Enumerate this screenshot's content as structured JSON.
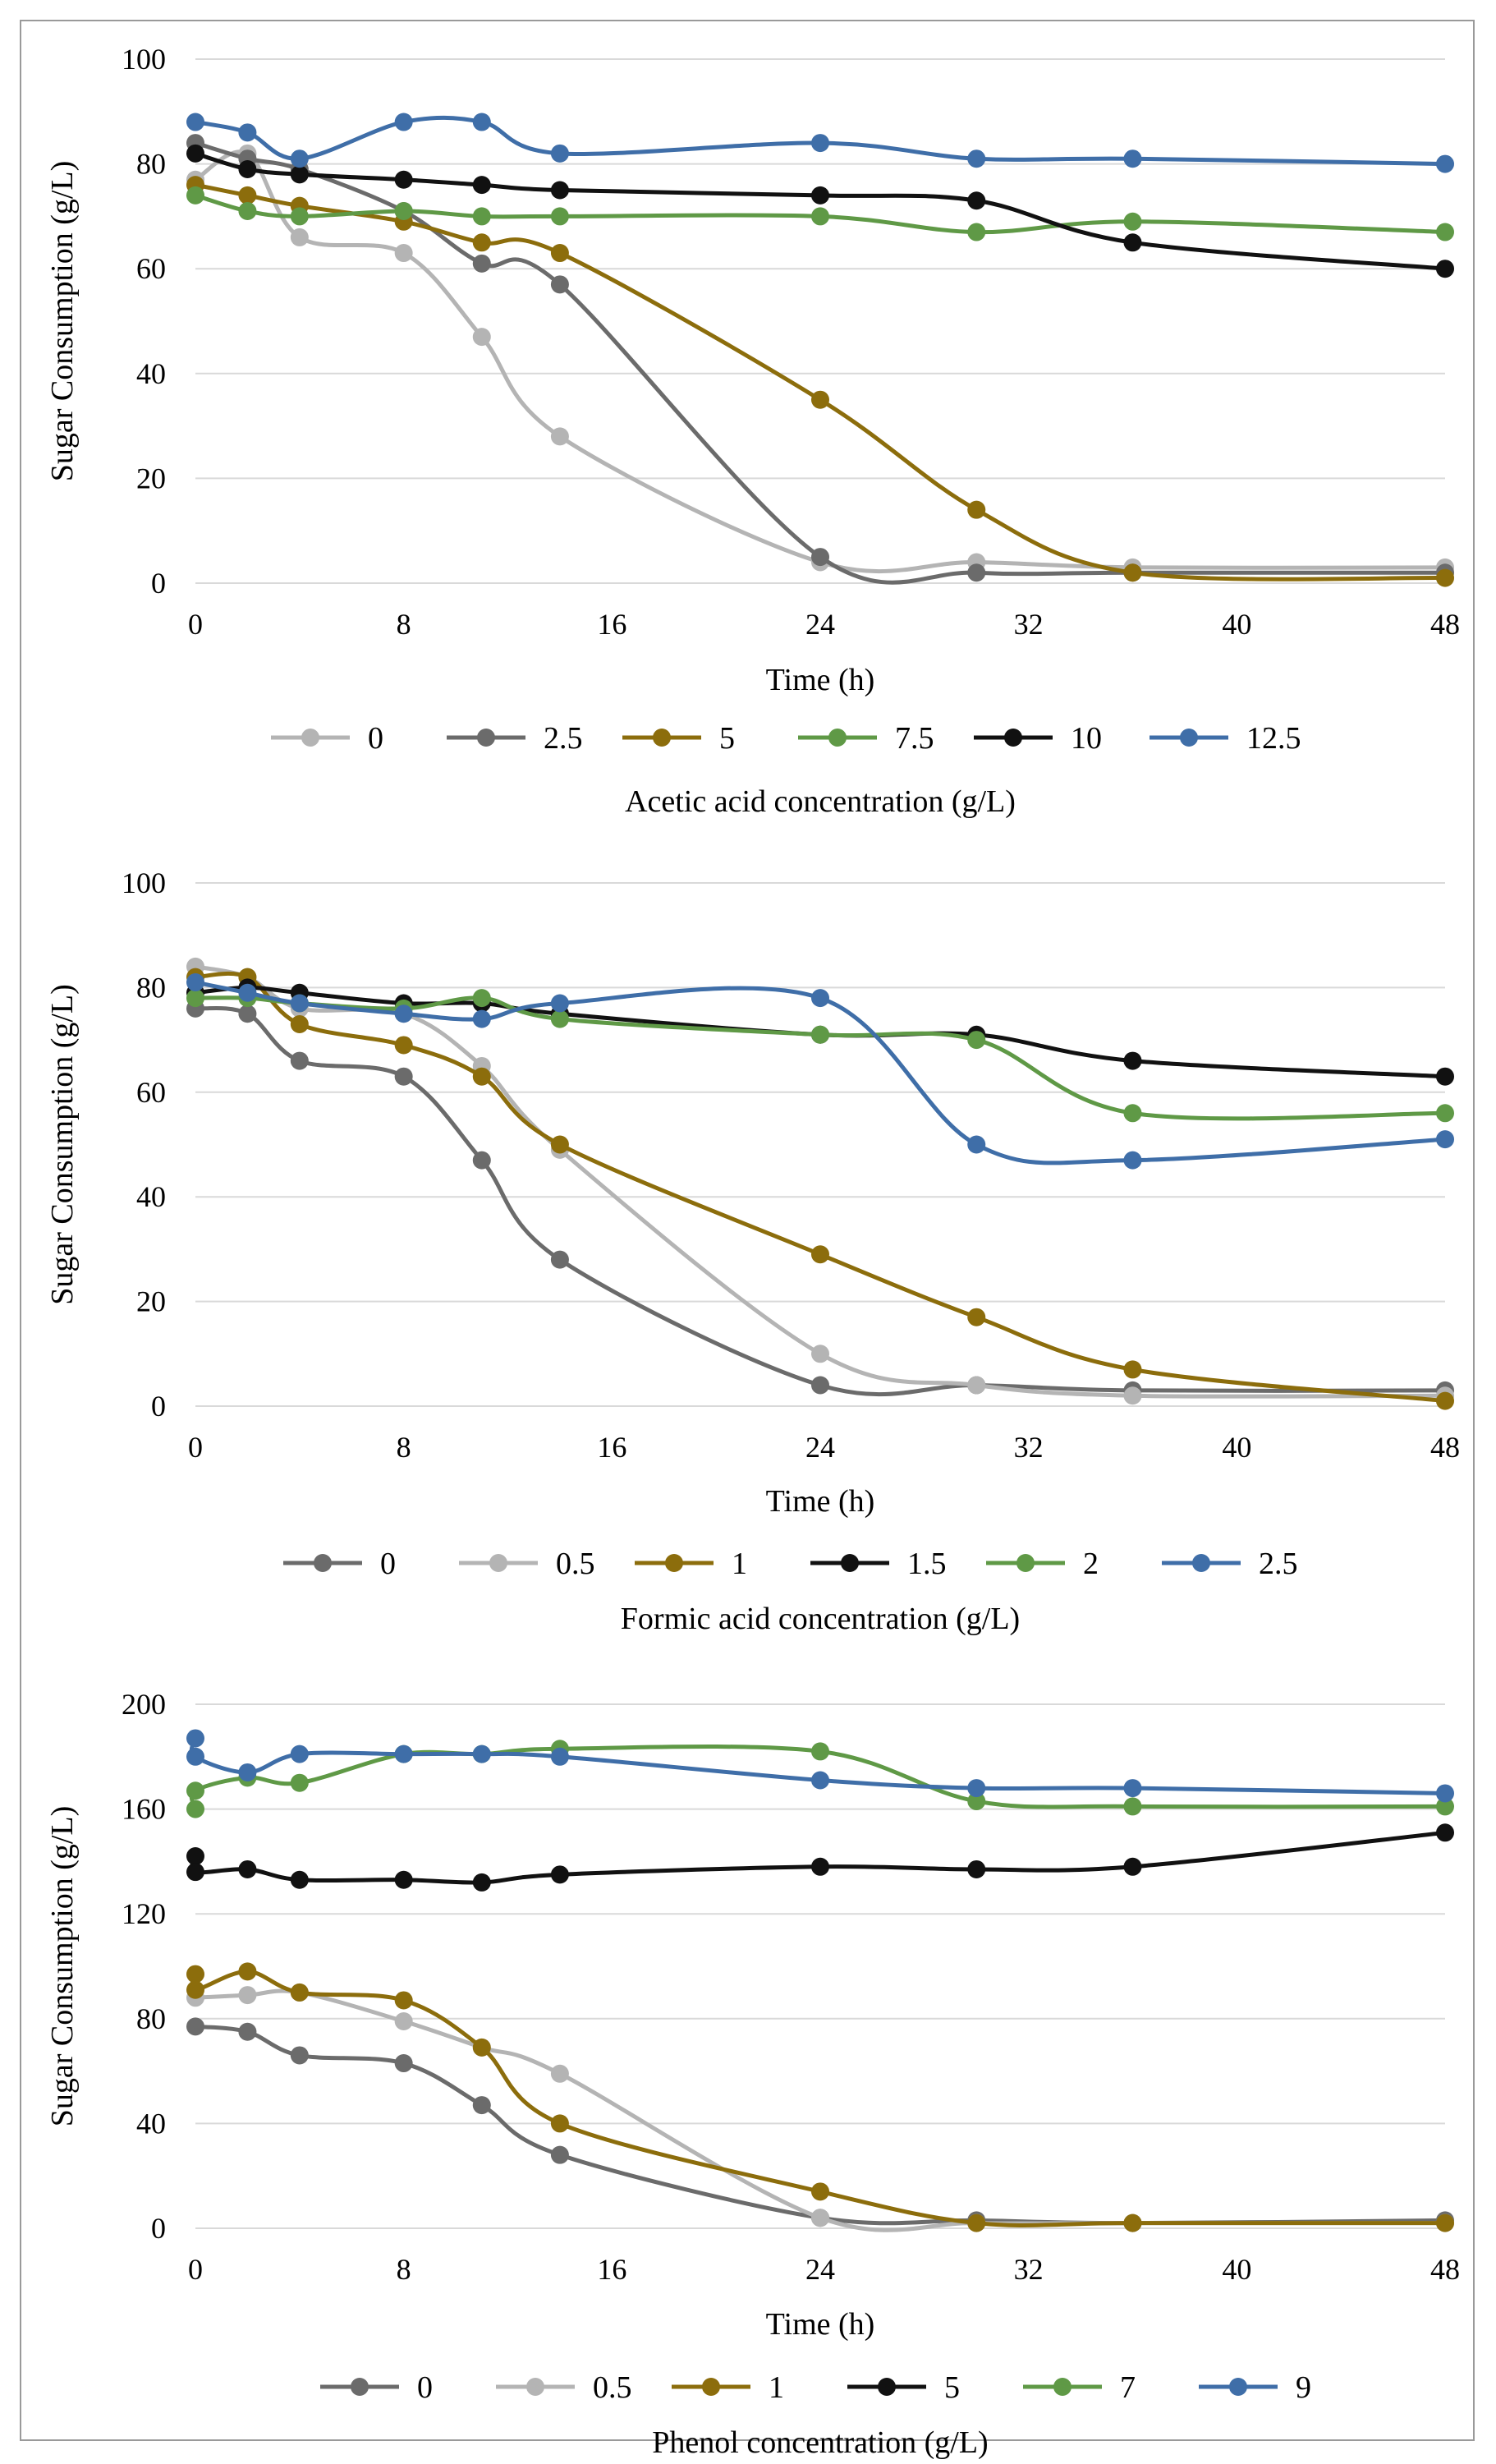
{
  "chart_data": [
    {
      "type": "line",
      "title": "",
      "xlabel": "Time (h)",
      "ylabel": "Sugar Consumption (g/L)",
      "legend_title": "Acetic acid concentration (g/L)",
      "legend_position": "bottom",
      "xlim": [
        0,
        48
      ],
      "ylim": [
        0,
        100
      ],
      "xticks": [
        0,
        8,
        16,
        24,
        32,
        40,
        48
      ],
      "yticks": [
        0,
        20,
        40,
        60,
        80,
        100
      ],
      "grid": true,
      "series": [
        {
          "name": "0",
          "color": "#b4b4b4",
          "x": [
            0,
            2,
            4,
            8,
            11,
            14,
            24,
            30,
            36,
            48
          ],
          "y": [
            77,
            82,
            66,
            63,
            47,
            28,
            4,
            4,
            3,
            3
          ]
        },
        {
          "name": "2.5",
          "color": "#6b6b6b",
          "x": [
            0,
            2,
            4,
            8,
            11,
            14,
            24,
            30,
            36,
            48
          ],
          "y": [
            84,
            81,
            79,
            71,
            61,
            57,
            5,
            2,
            2,
            2
          ]
        },
        {
          "name": "5",
          "color": "#8c6d0c",
          "x": [
            0,
            2,
            4,
            8,
            11,
            14,
            24,
            30,
            36,
            48
          ],
          "y": [
            76,
            74,
            72,
            69,
            65,
            63,
            35,
            14,
            2,
            1
          ]
        },
        {
          "name": "7.5",
          "color": "#5f9946",
          "x": [
            0,
            2,
            4,
            8,
            11,
            14,
            24,
            30,
            36,
            48
          ],
          "y": [
            74,
            71,
            70,
            71,
            70,
            70,
            70,
            67,
            69,
            67
          ]
        },
        {
          "name": "10",
          "color": "#111111",
          "x": [
            0,
            2,
            4,
            8,
            11,
            14,
            24,
            30,
            36,
            48
          ],
          "y": [
            82,
            79,
            78,
            77,
            76,
            75,
            74,
            73,
            65,
            60
          ]
        },
        {
          "name": "12.5",
          "color": "#3f6ea8",
          "x": [
            0,
            2,
            4,
            8,
            11,
            14,
            24,
            30,
            36,
            48
          ],
          "y": [
            88,
            86,
            81,
            88,
            88,
            82,
            84,
            81,
            81,
            80
          ]
        }
      ]
    },
    {
      "type": "line",
      "title": "",
      "xlabel": "Time (h)",
      "ylabel": "Sugar Consumption (g/L)",
      "legend_title": "Formic  acid concentration (g/L)",
      "legend_position": "bottom",
      "xlim": [
        0,
        48
      ],
      "ylim": [
        0,
        100
      ],
      "xticks": [
        0,
        8,
        16,
        24,
        32,
        40,
        48
      ],
      "yticks": [
        0,
        20,
        40,
        60,
        80,
        100
      ],
      "grid": true,
      "series": [
        {
          "name": "0",
          "color": "#6b6b6b",
          "x": [
            0,
            2,
            4,
            8,
            11,
            14,
            24,
            30,
            36,
            48
          ],
          "y": [
            76,
            75,
            66,
            63,
            47,
            28,
            4,
            4,
            3,
            3
          ]
        },
        {
          "name": "0.5",
          "color": "#b4b4b4",
          "x": [
            0,
            2,
            4,
            8,
            11,
            14,
            24,
            30,
            36,
            48
          ],
          "y": [
            84,
            82,
            76,
            75,
            65,
            49,
            10,
            4,
            2,
            2
          ]
        },
        {
          "name": "1",
          "color": "#8c6d0c",
          "x": [
            0,
            2,
            4,
            8,
            11,
            14,
            24,
            30,
            36,
            48
          ],
          "y": [
            82,
            82,
            73,
            69,
            63,
            50,
            29,
            17,
            7,
            1
          ]
        },
        {
          "name": "1.5",
          "color": "#111111",
          "x": [
            0,
            2,
            4,
            8,
            11,
            14,
            24,
            30,
            36,
            48
          ],
          "y": [
            79,
            80,
            79,
            77,
            77,
            75,
            71,
            71,
            66,
            63
          ]
        },
        {
          "name": "2",
          "color": "#5f9946",
          "x": [
            0,
            2,
            4,
            8,
            11,
            14,
            24,
            30,
            36,
            48
          ],
          "y": [
            78,
            78,
            77,
            76,
            78,
            74,
            71,
            70,
            56,
            56
          ]
        },
        {
          "name": "2.5",
          "color": "#3f6ea8",
          "x": [
            0,
            2,
            4,
            8,
            11,
            14,
            24,
            30,
            36,
            48
          ],
          "y": [
            81,
            79,
            77,
            75,
            74,
            77,
            78,
            50,
            47,
            51
          ]
        }
      ]
    },
    {
      "type": "line",
      "title": "",
      "xlabel": "Time (h)",
      "ylabel": "Sugar Consumption (g/L)",
      "legend_title": "Phenol concentration (g/L)",
      "legend_position": "bottom",
      "xlim": [
        0,
        48
      ],
      "ylim": [
        0,
        200
      ],
      "xticks": [
        0,
        8,
        16,
        24,
        32,
        40,
        48
      ],
      "yticks": [
        0,
        40,
        80,
        120,
        160,
        200
      ],
      "grid": true,
      "series": [
        {
          "name": "0",
          "color": "#6b6b6b",
          "x": [
            0,
            2,
            4,
            8,
            11,
            14,
            24,
            30,
            36,
            48
          ],
          "y": [
            77,
            75,
            66,
            63,
            47,
            28,
            4,
            3,
            2,
            3
          ]
        },
        {
          "name": "0.5",
          "color": "#b4b4b4",
          "x": [
            0,
            2,
            4,
            8,
            11,
            14,
            24,
            30,
            36,
            48
          ],
          "y": [
            88,
            89,
            90,
            79,
            69,
            59,
            4,
            2,
            2,
            2
          ]
        },
        {
          "name": "1",
          "color": "#8c6d0c",
          "x": [
            0,
            0,
            2,
            4,
            8,
            11,
            14,
            24,
            30,
            36,
            48
          ],
          "y": [
            97,
            91,
            98,
            90,
            87,
            69,
            40,
            14,
            2,
            2,
            2
          ]
        },
        {
          "name": "5",
          "color": "#111111",
          "x": [
            0,
            0,
            2,
            4,
            8,
            11,
            14,
            24,
            30,
            36,
            48
          ],
          "y": [
            142,
            136,
            137,
            133,
            133,
            132,
            135,
            138,
            137,
            138,
            151
          ]
        },
        {
          "name": "7",
          "color": "#5f9946",
          "x": [
            0,
            0,
            2,
            4,
            8,
            11,
            14,
            24,
            30,
            36,
            48
          ],
          "y": [
            160,
            167,
            172,
            170,
            181,
            181,
            183,
            182,
            163,
            161,
            161
          ]
        },
        {
          "name": "9",
          "color": "#3f6ea8",
          "x": [
            0,
            0,
            2,
            4,
            8,
            11,
            14,
            24,
            30,
            36,
            48
          ],
          "y": [
            187,
            180,
            174,
            181,
            181,
            181,
            180,
            171,
            168,
            168,
            166
          ]
        }
      ]
    }
  ]
}
